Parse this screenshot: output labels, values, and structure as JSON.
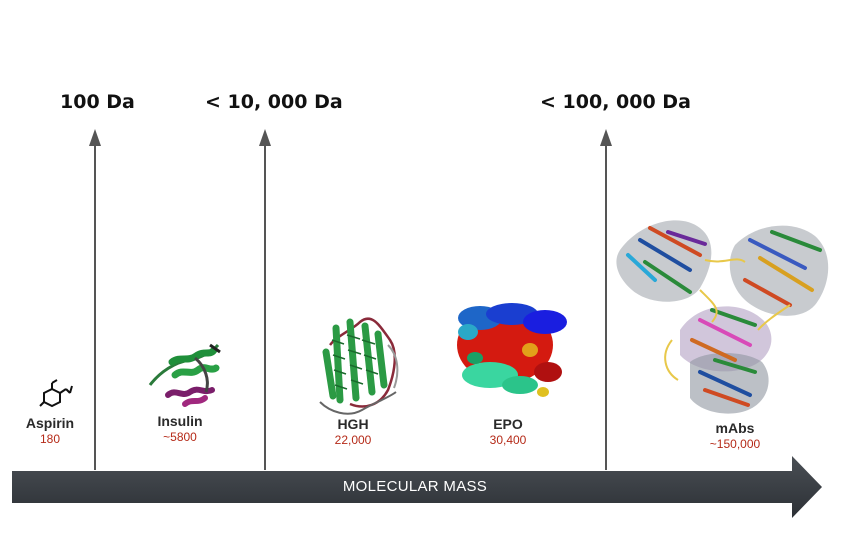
{
  "axis": {
    "label": "MOLECULAR MASS"
  },
  "thresholds": [
    {
      "label": "100 Da"
    },
    {
      "label": "< 10, 000 Da"
    },
    {
      "label": "< 100, 000 Da"
    }
  ],
  "molecules": [
    {
      "name": "Aspirin",
      "mass": "180"
    },
    {
      "name": "Insulin",
      "mass": "~5800"
    },
    {
      "name": "HGH",
      "mass": "22,000"
    },
    {
      "name": "EPO",
      "mass": "30,400"
    },
    {
      "name": "mAbs",
      "mass": "~150,000"
    }
  ],
  "colors": {
    "axis": "#3b3f44",
    "value": "#b52a18",
    "threshold_line": "#555555"
  }
}
